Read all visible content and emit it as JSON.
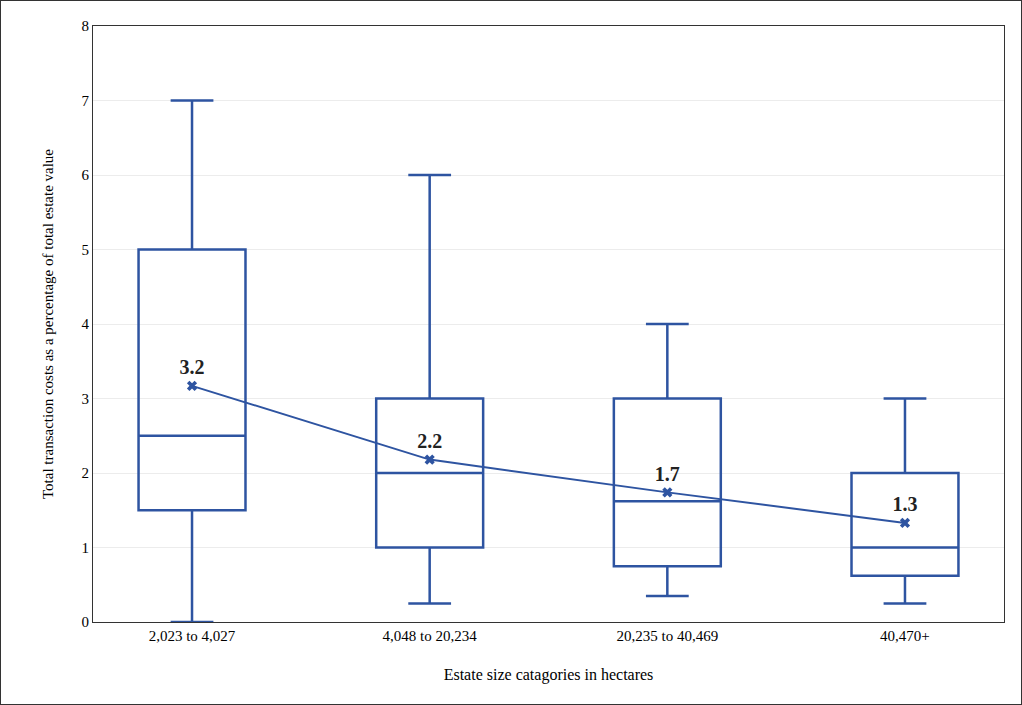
{
  "chart_data": {
    "type": "box",
    "x_label": "Estate size catagories in hectares",
    "y_label": "Total transaction costs as a percentage of total estate value",
    "categories": [
      "2,023 to 4,027",
      "4,048 to 20,234",
      "20,235 to 40,469",
      "40,470+"
    ],
    "lower_whisker": [
      0,
      0.25,
      0.35,
      0.25
    ],
    "q1": [
      1.5,
      1,
      0.75,
      0.62
    ],
    "median": [
      2.5,
      2,
      1.62,
      1
    ],
    "q3": [
      5,
      3,
      3,
      2
    ],
    "upper_whisker": [
      7,
      6,
      4,
      3
    ],
    "means": [
      3.17,
      2.18,
      1.74,
      1.33
    ],
    "value_labels": [
      "3.2",
      "2.2",
      "1.7",
      "1.3"
    ],
    "data_labels": true,
    "marker": "x",
    "color": "#2e54a1",
    "ylim": [
      0,
      8
    ],
    "yticks": [
      0,
      1,
      2,
      3,
      4,
      5,
      6,
      7,
      8
    ],
    "grid": true
  }
}
